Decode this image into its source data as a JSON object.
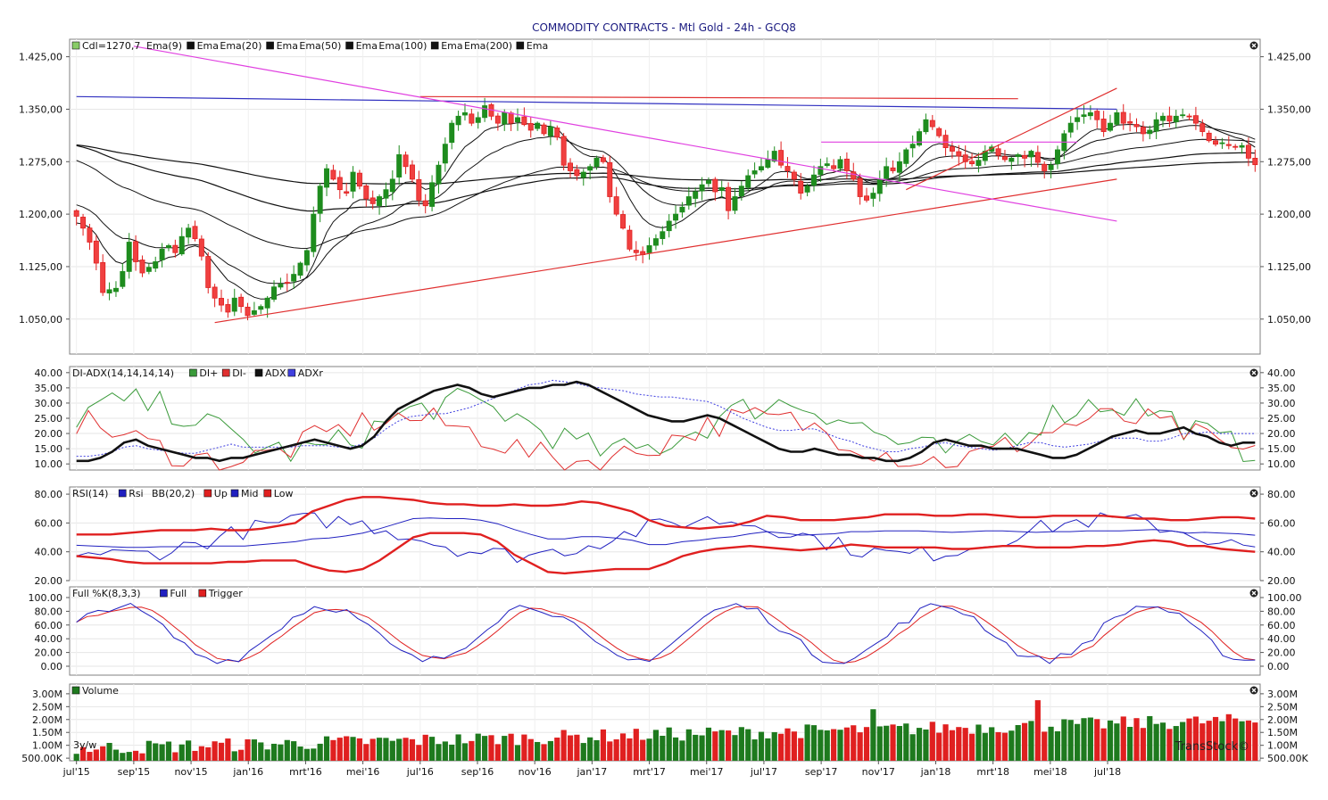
{
  "title": "COMMODITY CONTRACTS - Mtl Gold - 24h - GCQ8",
  "watermark": "TransStock©",
  "period_badge": "3y/w",
  "colors": {
    "up_candle": "#1e8c1e",
    "down_candle": "#e02020",
    "trendline_red": "#e03030",
    "trendline_blue": "#3030c0",
    "trendline_magenta": "#e040e0",
    "grid": "#e6e6e6",
    "frame": "#808080"
  },
  "panels": {
    "price": {
      "legend": [
        "Cdl=1270,7",
        "Ema(9)",
        "Ema",
        "Ema(20)",
        "Ema",
        "Ema(50)",
        "Ema",
        "Ema(100)",
        "Ema",
        "Ema(200)",
        "Ema"
      ],
      "ticks": [
        "1.425,00",
        "1.350,00",
        "1.275,00",
        "1.200,00",
        "1.125,00",
        "1.050,00"
      ]
    },
    "adx": {
      "legend": [
        "DI-ADX(14,14,14,14)",
        "DI+",
        "DI-",
        "ADX",
        "ADXr"
      ],
      "ticks": [
        "40.00",
        "35.00",
        "30.00",
        "25.00",
        "20.00",
        "15.00",
        "10.00"
      ]
    },
    "rsi": {
      "legend": [
        "RSI(14)",
        "Rsi",
        "BB(20,2)",
        "Up",
        "Mid",
        "Low"
      ],
      "ticks": [
        "80.00",
        "60.00",
        "40.00",
        "20.00"
      ]
    },
    "stoch": {
      "legend": [
        "Full %K(8,3,3)",
        "Full",
        "Trigger"
      ],
      "ticks": [
        "100.00",
        "80.00",
        "60.00",
        "40.00",
        "20.00",
        "0.00"
      ]
    },
    "volume": {
      "legend": [
        "Volume"
      ],
      "ticks": [
        "3.00M",
        "2.50M",
        "2.00M",
        "1.50M",
        "1.00M",
        "500.00K"
      ]
    }
  },
  "x_labels": [
    "jul'15",
    "sep'15",
    "nov'15",
    "jan'16",
    "mrt'16",
    "mei'16",
    "jul'16",
    "sep'16",
    "nov'16",
    "jan'17",
    "mrt'17",
    "mei'17",
    "jul'17",
    "sep'17",
    "nov'17",
    "jan'18",
    "mrt'18",
    "mei'18",
    "jul'18"
  ],
  "chart_data": {
    "type": "candlestick",
    "frequency": "weekly",
    "x_range": [
      "jul'15",
      "jul'18"
    ],
    "price_ylim": [
      1000,
      1450
    ],
    "closes": [
      1197,
      1180,
      1160,
      1130,
      1088,
      1092,
      1094,
      1118,
      1160,
      1132,
      1116,
      1124,
      1132,
      1150,
      1155,
      1145,
      1168,
      1180,
      1165,
      1140,
      1095,
      1080,
      1070,
      1060,
      1080,
      1068,
      1055,
      1062,
      1068,
      1080,
      1096,
      1100,
      1102,
      1114,
      1130,
      1148,
      1200,
      1240,
      1265,
      1250,
      1235,
      1230,
      1260,
      1240,
      1222,
      1215,
      1225,
      1235,
      1250,
      1285,
      1268,
      1250,
      1220,
      1212,
      1245,
      1270,
      1300,
      1330,
      1340,
      1345,
      1330,
      1338,
      1355,
      1340,
      1330,
      1345,
      1330,
      1338,
      1328,
      1320,
      1330,
      1315,
      1325,
      1310,
      1270,
      1262,
      1255,
      1260,
      1268,
      1280,
      1275,
      1225,
      1200,
      1180,
      1150,
      1145,
      1142,
      1155,
      1165,
      1175,
      1190,
      1200,
      1210,
      1225,
      1232,
      1242,
      1248,
      1232,
      1238,
      1205,
      1225,
      1240,
      1255,
      1262,
      1268,
      1278,
      1290,
      1270,
      1262,
      1250,
      1230,
      1240,
      1256,
      1268,
      1272,
      1265,
      1278,
      1262,
      1250,
      1225,
      1220,
      1230,
      1250,
      1268,
      1262,
      1275,
      1292,
      1300,
      1318,
      1335,
      1325,
      1312,
      1295,
      1290,
      1283,
      1275,
      1272,
      1277,
      1290,
      1296,
      1284,
      1278,
      1280,
      1285,
      1280,
      1290,
      1274,
      1262,
      1270,
      1292,
      1315,
      1330,
      1338,
      1342,
      1345,
      1335,
      1318,
      1330,
      1345,
      1330,
      1330,
      1325,
      1315,
      1320,
      1335,
      1340,
      1333,
      1340,
      1342,
      1340,
      1330,
      1318,
      1305,
      1300,
      1302,
      1298,
      1296,
      1298,
      1280,
      1270.7
    ],
    "ema_periods": [
      9,
      20,
      50,
      100,
      200
    ],
    "trendlines": [
      {
        "color": "blue",
        "from": [
          "jul'15",
          1368
        ],
        "to": [
          "jul'18",
          1350
        ]
      },
      {
        "color": "red",
        "from": [
          "jul'16",
          1368
        ],
        "to": [
          "apr'18",
          1365
        ]
      },
      {
        "color": "red",
        "from": [
          "dec'15",
          1045
        ],
        "to": [
          "jul'18",
          1250
        ]
      },
      {
        "color": "magenta",
        "from": [
          "sep'15",
          1440
        ],
        "to": [
          "jul'18",
          1190
        ]
      },
      {
        "color": "red",
        "from": [
          "dec'17",
          1235
        ],
        "to": [
          "jul'18",
          1380
        ]
      },
      {
        "color": "magenta",
        "from": [
          "sep'17",
          1303
        ],
        "to": [
          "jun'18",
          1303
        ]
      }
    ],
    "indicators": {
      "adx_range": [
        8,
        42
      ],
      "rsi_range": [
        20,
        85
      ],
      "stoch_range": [
        0,
        100
      ],
      "volume_range_millions": [
        0.4,
        3.1
      ]
    }
  }
}
